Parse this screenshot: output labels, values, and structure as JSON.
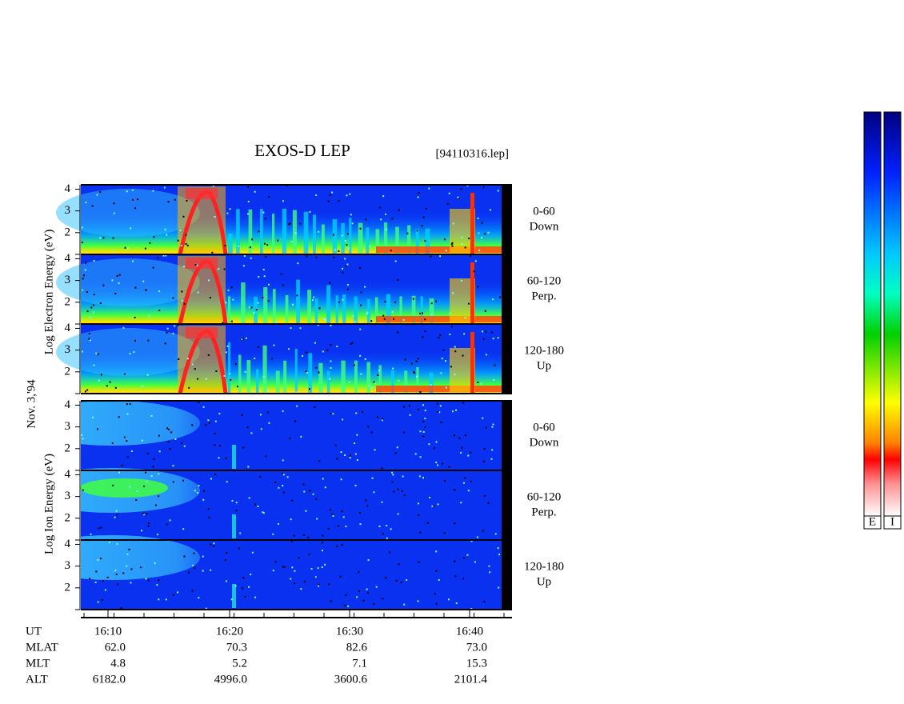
{
  "header": {
    "title": "EXOS-D LEP",
    "file": "[94110316.lep]"
  },
  "side_labels": {
    "electron": "Log Electron Energy (eV)",
    "ion": "Log Ion Energy (eV)",
    "date": "Nov. 3,'94"
  },
  "panels": [
    {
      "species": "electron",
      "angle": "0-60",
      "direction": "Down",
      "ylim": [
        1,
        4.2
      ],
      "yticks": [
        2,
        3,
        4
      ]
    },
    {
      "species": "electron",
      "angle": "60-120",
      "direction": "Perp.",
      "ylim": [
        1,
        4.2
      ],
      "yticks": [
        2,
        3,
        4
      ]
    },
    {
      "species": "electron",
      "angle": "120-180",
      "direction": "Up",
      "ylim": [
        1,
        4.2
      ],
      "yticks": [
        2,
        3,
        4
      ]
    },
    {
      "species": "ion",
      "angle": "0-60",
      "direction": "Down",
      "ylim": [
        1,
        4.2
      ],
      "yticks": [
        2,
        3,
        4
      ]
    },
    {
      "species": "ion",
      "angle": "60-120",
      "direction": "Perp.",
      "ylim": [
        1,
        4.2
      ],
      "yticks": [
        2,
        3,
        4
      ]
    },
    {
      "species": "ion",
      "angle": "120-180",
      "direction": "Up",
      "ylim": [
        1,
        4.2
      ],
      "yticks": [
        2,
        3,
        4
      ]
    }
  ],
  "ephemeris": {
    "labels": [
      "UT",
      "MLAT",
      "MLT",
      "ALT"
    ],
    "rows": [
      [
        "16:10",
        "16:20",
        "16:30",
        "16:40"
      ],
      [
        "62.0",
        "70.3",
        "82.6",
        "73.0"
      ],
      [
        "4.8",
        "5.2",
        "7.1",
        "15.3"
      ],
      [
        "6182.0",
        "4996.0",
        "3600.6",
        "2101.4"
      ]
    ]
  },
  "colorbars": [
    "E",
    "I"
  ]
}
